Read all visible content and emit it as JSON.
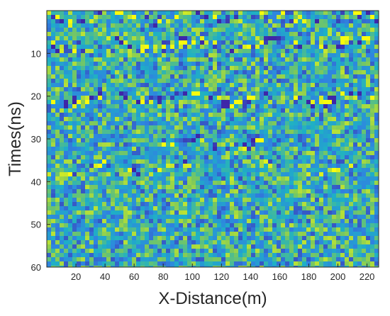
{
  "chart_data": {
    "type": "heatmap",
    "title": "",
    "xlabel": "X-Distance(m)",
    "ylabel": "Times(ns)",
    "xlim": [
      0,
      228
    ],
    "ylim": [
      0,
      60
    ],
    "y_reversed": true,
    "x_ticks": [
      20,
      40,
      60,
      80,
      100,
      120,
      140,
      160,
      180,
      200,
      220
    ],
    "y_ticks": [
      10,
      20,
      30,
      40,
      50,
      60
    ],
    "colormap": "parula",
    "colors": {
      "low": "#3e26a8",
      "mid_low": "#2f84e0",
      "mid": "#1eb0c5",
      "mid_high": "#7ec95a",
      "high": "#f9fb0e",
      "axis": "#262626"
    },
    "background_intensity": 0.5,
    "reflection_bands": [
      {
        "x_start": 0,
        "x_end": 228,
        "time": 1.5,
        "strength": 0.35
      },
      {
        "x_start": 0,
        "x_end": 228,
        "time": 8.0,
        "strength": 0.3
      },
      {
        "x_start": 0,
        "x_end": 228,
        "time": 20.5,
        "strength": 0.4
      },
      {
        "x_start": 80,
        "x_end": 150,
        "time": 31.0,
        "strength": 0.35
      },
      {
        "x_start": 0,
        "x_end": 228,
        "time": 37.0,
        "strength": 0.2
      }
    ]
  }
}
